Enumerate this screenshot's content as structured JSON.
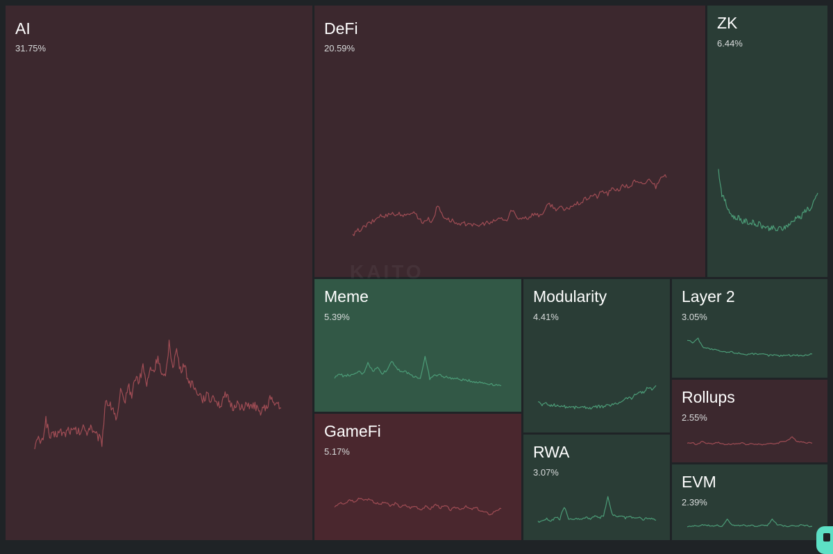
{
  "watermark": "KAITO",
  "chart_data": {
    "type": "treemap",
    "colors": {
      "negative_fill": "#3c282e",
      "negative_fill_strong": "#4a272e",
      "positive_fill": "#2a3d36",
      "positive_fill_strong": "#325846",
      "negative_line": "#a14d55",
      "positive_line": "#4c9d78"
    },
    "sectors": [
      {
        "name": "AI",
        "share": "31.75%",
        "trend": "down",
        "series": [
          0.1,
          0.14,
          0.12,
          0.3,
          0.16,
          0.17,
          0.19,
          0.2,
          0.18,
          0.22,
          0.2,
          0.21,
          0.19,
          0.23,
          0.2,
          0.25,
          0.18,
          0.16,
          0.12,
          0.45,
          0.4,
          0.38,
          0.28,
          0.5,
          0.42,
          0.55,
          0.48,
          0.62,
          0.58,
          0.7,
          0.55,
          0.68,
          0.66,
          0.78,
          0.62,
          0.6,
          0.88,
          0.7,
          0.82,
          0.66,
          0.72,
          0.6,
          0.56,
          0.52,
          0.5,
          0.45,
          0.48,
          0.44,
          0.48,
          0.42,
          0.4,
          0.47,
          0.44,
          0.38,
          0.42,
          0.4,
          0.36,
          0.42,
          0.38,
          0.4,
          0.34,
          0.38,
          0.37,
          0.46,
          0.4,
          0.42,
          0.38
        ]
      },
      {
        "name": "DeFi",
        "share": "20.59%",
        "trend": "down",
        "series": [
          0.0,
          0.08,
          0.12,
          0.18,
          0.22,
          0.3,
          0.28,
          0.35,
          0.31,
          0.33,
          0.28,
          0.36,
          0.32,
          0.2,
          0.25,
          0.22,
          0.45,
          0.3,
          0.24,
          0.22,
          0.15,
          0.18,
          0.2,
          0.14,
          0.16,
          0.2,
          0.18,
          0.24,
          0.26,
          0.22,
          0.4,
          0.25,
          0.28,
          0.27,
          0.33,
          0.3,
          0.36,
          0.48,
          0.4,
          0.42,
          0.37,
          0.44,
          0.46,
          0.5,
          0.55,
          0.6,
          0.58,
          0.66,
          0.62,
          0.7,
          0.68,
          0.74,
          0.72,
          0.8,
          0.76,
          0.78,
          0.84,
          0.72,
          0.9,
          0.86
        ]
      },
      {
        "name": "ZK",
        "share": "6.44%",
        "trend": "up",
        "series": [
          0.95,
          0.6,
          0.5,
          0.35,
          0.3,
          0.25,
          0.28,
          0.2,
          0.22,
          0.18,
          0.2,
          0.15,
          0.18,
          0.12,
          0.14,
          0.1,
          0.12,
          0.08,
          0.12,
          0.1,
          0.15,
          0.18,
          0.22,
          0.3,
          0.25,
          0.35,
          0.4,
          0.38,
          0.5,
          0.62
        ]
      },
      {
        "name": "Meme",
        "share": "5.39%",
        "trend": "up",
        "series": [
          0.4,
          0.55,
          0.45,
          0.5,
          0.48,
          0.6,
          0.52,
          0.85,
          0.6,
          0.7,
          0.55,
          0.62,
          0.9,
          0.7,
          0.6,
          0.58,
          0.5,
          0.45,
          0.4,
          1.0,
          0.4,
          0.48,
          0.5,
          0.45,
          0.42,
          0.4,
          0.38,
          0.36,
          0.35,
          0.32,
          0.3,
          0.28,
          0.26,
          0.25,
          0.22,
          0.2
        ]
      },
      {
        "name": "Modularity",
        "share": "4.41%",
        "trend": "up",
        "series": [
          0.2,
          0.12,
          0.15,
          0.1,
          0.12,
          0.08,
          0.1,
          0.06,
          0.08,
          0.05,
          0.07,
          0.05,
          0.06,
          0.04,
          0.06,
          0.08,
          0.07,
          0.1,
          0.12,
          0.14,
          0.18,
          0.25,
          0.3,
          0.28,
          0.38,
          0.45,
          0.42,
          0.55,
          0.5,
          0.6
        ]
      },
      {
        "name": "Layer 2",
        "share": "3.05%",
        "trend": "up",
        "series": [
          0.9,
          0.8,
          0.95,
          0.6,
          0.55,
          0.5,
          0.45,
          0.4,
          0.42,
          0.38,
          0.35,
          0.32,
          0.36,
          0.3,
          0.33,
          0.28,
          0.3,
          0.26,
          0.3,
          0.28,
          0.3,
          0.27,
          0.3,
          0.33
        ]
      },
      {
        "name": "GameFi",
        "share": "5.17%",
        "trend": "down",
        "series": [
          0.5,
          0.6,
          0.55,
          0.7,
          0.62,
          0.75,
          0.68,
          0.72,
          0.6,
          0.55,
          0.62,
          0.5,
          0.58,
          0.48,
          0.52,
          0.45,
          0.5,
          0.4,
          0.48,
          0.42,
          0.55,
          0.45,
          0.5,
          0.38,
          0.46,
          0.42,
          0.48,
          0.4,
          0.45,
          0.35,
          0.3,
          0.25,
          0.38,
          0.42
        ]
      },
      {
        "name": "RWA",
        "share": "3.07%",
        "trend": "up",
        "series": [
          0.1,
          0.15,
          0.2,
          0.12,
          0.25,
          0.18,
          0.6,
          0.2,
          0.15,
          0.22,
          0.18,
          0.25,
          0.2,
          0.28,
          0.22,
          0.3,
          0.9,
          0.35,
          0.25,
          0.3,
          0.22,
          0.28,
          0.2,
          0.25,
          0.18,
          0.22,
          0.2,
          0.15
        ]
      },
      {
        "name": "Rollups",
        "share": "2.55%",
        "trend": "down",
        "series": [
          0.3,
          0.35,
          0.25,
          0.4,
          0.32,
          0.28,
          0.35,
          0.3,
          0.25,
          0.3,
          0.28,
          0.32,
          0.26,
          0.3,
          0.28,
          0.25,
          0.3,
          0.28,
          0.32,
          0.4,
          0.45,
          0.6,
          0.42,
          0.38,
          0.35,
          0.32
        ]
      },
      {
        "name": "EVM",
        "share": "2.39%",
        "trend": "up",
        "series": [
          0.2,
          0.25,
          0.22,
          0.3,
          0.28,
          0.25,
          0.3,
          0.22,
          0.6,
          0.28,
          0.25,
          0.3,
          0.22,
          0.26,
          0.24,
          0.3,
          0.28,
          0.55,
          0.3,
          0.26,
          0.24,
          0.28,
          0.25,
          0.3,
          0.26,
          0.22
        ]
      }
    ]
  }
}
